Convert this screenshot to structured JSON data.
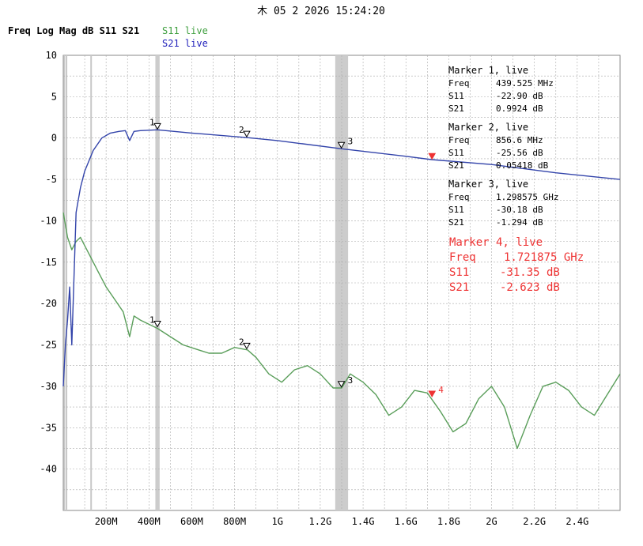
{
  "datetime": "木 05 2 2026 15:24:20",
  "header": {
    "label": "Freq Log Mag dB S11 S21"
  },
  "legend": [
    {
      "label": "S11 live",
      "color": "#3f9f3f"
    },
    {
      "label": "S21 live",
      "color": "#2222bb"
    }
  ],
  "colors": {
    "s11": "#5a9e5a",
    "s21": "#3344aa",
    "marker4": "#ee3333",
    "grid": "#aaaaaa",
    "band": "#cccccc"
  },
  "markers": [
    {
      "id": "1",
      "title": "Marker 1, live",
      "freq_label": "Freq",
      "freq": "439.525 MHz",
      "s11_label": "S11",
      "s11": "-22.90 dB",
      "s21_label": "S21",
      "s21": "0.9924 dB",
      "freq_ghz": 0.439525,
      "s11_db": -22.9,
      "s21_db": 0.9924
    },
    {
      "id": "2",
      "title": "Marker 2, live",
      "freq_label": "Freq",
      "freq": "856.6 MHz",
      "s11_label": "S11",
      "s11": "-25.56 dB",
      "s21_label": "S21",
      "s21": "0.05418 dB",
      "freq_ghz": 0.8566,
      "s11_db": -25.56,
      "s21_db": 0.05418
    },
    {
      "id": "3",
      "title": "Marker 3, live",
      "freq_label": "Freq",
      "freq": "1.298575 GHz",
      "s11_label": "S11",
      "s11": "-30.18 dB",
      "s21_label": "S21",
      "s21": "-1.294 dB",
      "freq_ghz": 1.298575,
      "s11_db": -30.18,
      "s21_db": -1.294
    },
    {
      "id": "4",
      "title": "Marker 4, live",
      "freq_label": "Freq",
      "freq": "1.721875 GHz",
      "s11_label": "S11",
      "s11": "-31.35 dB",
      "s21_label": "S21",
      "s21": "-2.623 dB",
      "freq_ghz": 1.721875,
      "s11_db": -31.35,
      "s21_db": -2.623
    }
  ],
  "chart_data": {
    "type": "line",
    "title": "Freq Log Mag dB S11 S21",
    "xlabel": "",
    "ylabel": "",
    "xlim": [
      0.0,
      2.6
    ],
    "ylim": [
      -45,
      10
    ],
    "x_unit": "GHz",
    "x_ticks": [
      {
        "v": 0.2,
        "label": "200M"
      },
      {
        "v": 0.4,
        "label": "400M"
      },
      {
        "v": 0.6,
        "label": "600M"
      },
      {
        "v": 0.8,
        "label": "800M"
      },
      {
        "v": 1.0,
        "label": "1G"
      },
      {
        "v": 1.2,
        "label": "1.2G"
      },
      {
        "v": 1.4,
        "label": "1.4G"
      },
      {
        "v": 1.6,
        "label": "1.6G"
      },
      {
        "v": 1.8,
        "label": "1.8G"
      },
      {
        "v": 2.0,
        "label": "2G"
      },
      {
        "v": 2.2,
        "label": "2.2G"
      },
      {
        "v": 2.4,
        "label": "2.4G"
      }
    ],
    "y_ticks": [
      10,
      5,
      0,
      -5,
      -10,
      -15,
      -20,
      -25,
      -30,
      -35,
      -40
    ],
    "grid": true,
    "shaded_bands": [
      [
        0.43,
        0.45
      ],
      [
        1.27,
        1.33
      ]
    ],
    "series": [
      {
        "name": "S11 live",
        "x": [
          0.0,
          0.02,
          0.04,
          0.06,
          0.08,
          0.12,
          0.16,
          0.2,
          0.24,
          0.28,
          0.31,
          0.33,
          0.36,
          0.4,
          0.44,
          0.5,
          0.56,
          0.62,
          0.68,
          0.74,
          0.8,
          0.86,
          0.9,
          0.96,
          1.02,
          1.08,
          1.14,
          1.2,
          1.26,
          1.3,
          1.34,
          1.4,
          1.46,
          1.52,
          1.58,
          1.64,
          1.7,
          1.76,
          1.82,
          1.88,
          1.94,
          2.0,
          2.06,
          2.12,
          2.18,
          2.24,
          2.3,
          2.36,
          2.42,
          2.48,
          2.54,
          2.6
        ],
        "values": [
          -9,
          -12,
          -13.5,
          -12.5,
          -12,
          -14,
          -16,
          -18,
          -19.5,
          -21,
          -24,
          -21.5,
          -22,
          -22.5,
          -23,
          -24,
          -25,
          -25.5,
          -26,
          -26,
          -25.3,
          -25.6,
          -26.5,
          -28.5,
          -29.5,
          -28,
          -27.5,
          -28.5,
          -30.2,
          -30.2,
          -28.5,
          -29.5,
          -31,
          -33.5,
          -32.5,
          -30.5,
          -30.8,
          -33,
          -35.5,
          -34.5,
          -31.5,
          -30,
          -32.5,
          -37.5,
          -33.5,
          -30,
          -29.5,
          -30.5,
          -32.5,
          -33.5,
          -31,
          -28.5
        ]
      },
      {
        "name": "S21 live",
        "x": [
          0.0,
          0.01,
          0.02,
          0.03,
          0.04,
          0.06,
          0.08,
          0.1,
          0.14,
          0.18,
          0.22,
          0.26,
          0.29,
          0.31,
          0.33,
          0.36,
          0.44,
          0.6,
          0.86,
          1.0,
          1.3,
          1.6,
          1.72,
          2.0,
          2.3,
          2.6
        ],
        "values": [
          -30,
          -25,
          -22,
          -18,
          -25,
          -9,
          -6,
          -4,
          -1.5,
          0,
          0.6,
          0.8,
          0.9,
          -0.3,
          0.8,
          0.9,
          1.0,
          0.6,
          0.05,
          -0.3,
          -1.3,
          -2.2,
          -2.6,
          -3.2,
          -4.2,
          -5
        ]
      }
    ],
    "markers": [
      {
        "label": "1",
        "x": 0.439525,
        "s11": -22.9,
        "s21": 0.9924
      },
      {
        "label": "2",
        "x": 0.8566,
        "s11": -25.56,
        "s21": 0.05418
      },
      {
        "label": "3",
        "x": 1.298575,
        "s11": -30.18,
        "s21": -1.294
      },
      {
        "label": "4",
        "x": 1.721875,
        "s11": -31.35,
        "s21": -2.623
      }
    ]
  }
}
